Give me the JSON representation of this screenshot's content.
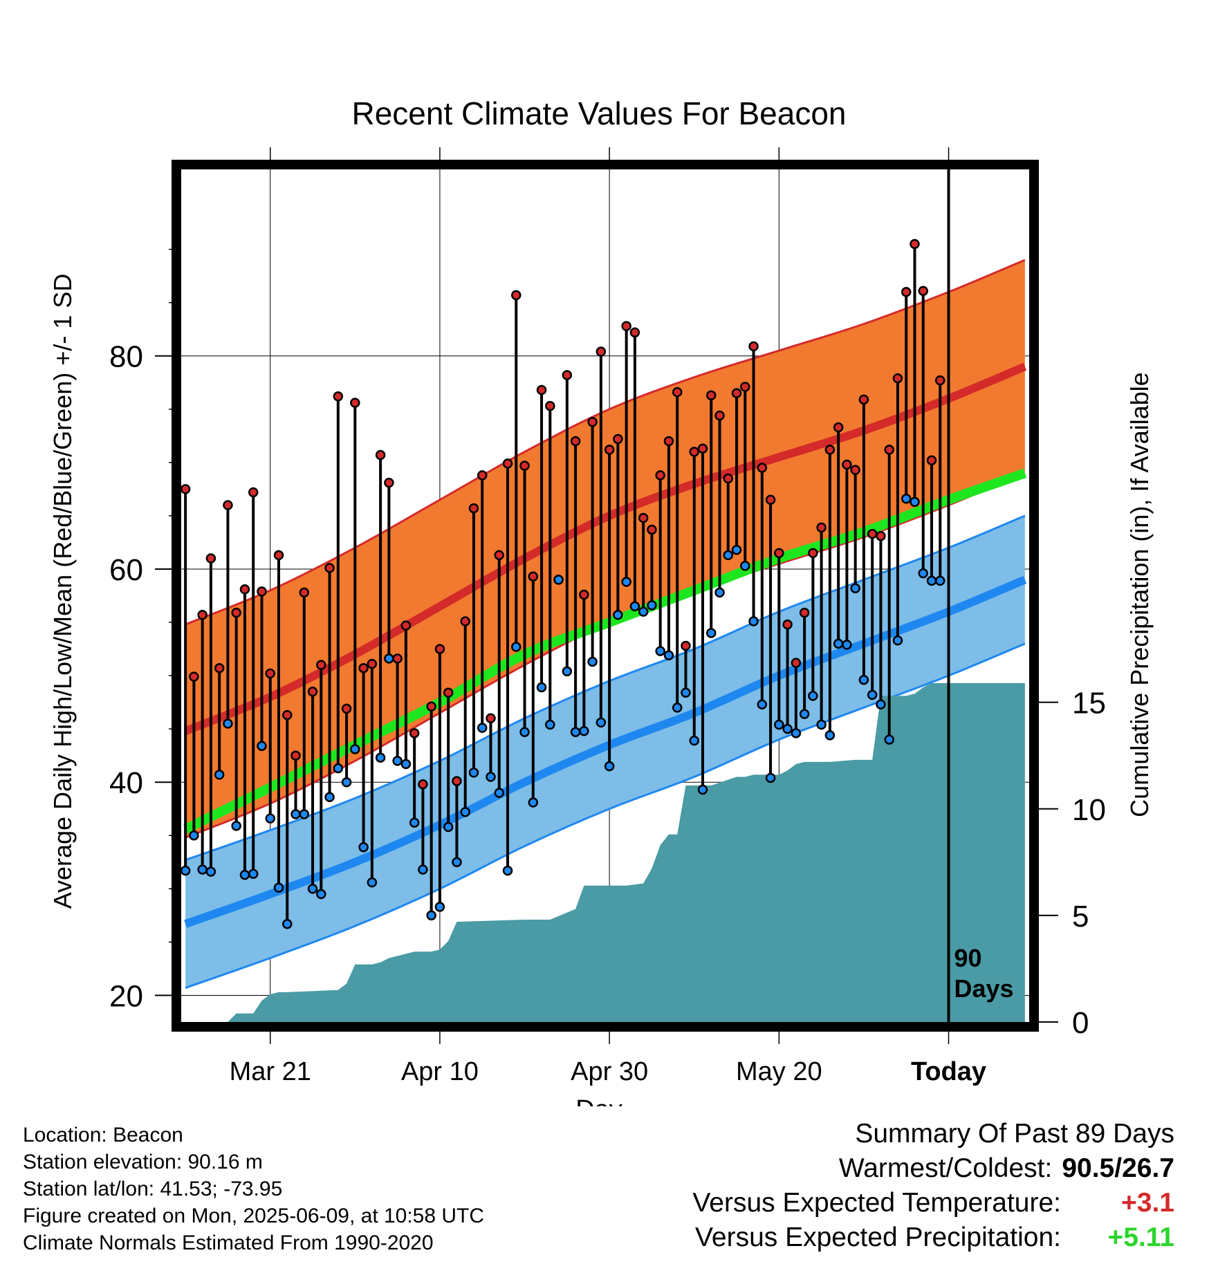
{
  "chart_data": {
    "type": "line",
    "title": "Recent Climate Values For Beacon",
    "xlabel": "Day",
    "ylabel": "Average Daily High/Low/Mean (Red/Blue/Green) +/- 1 SD",
    "y2label": "Cumulative Precipitation (in), If Available",
    "ylim": [
      17.5,
      97.5
    ],
    "y2lim": [
      0,
      40
    ],
    "y_ticks": [
      20,
      40,
      60,
      80
    ],
    "y2_ticks": [
      0,
      5,
      10,
      15
    ],
    "x_ticks": [
      "Mar 21",
      "Apr 10",
      "Apr 30",
      "May 20",
      "Today"
    ],
    "x_tick_days": [
      10,
      30,
      50,
      70,
      90
    ],
    "xlim": [
      -0.5,
      99.5
    ],
    "today_label": "90 Days",
    "grid": true,
    "colors": {
      "high_band": "#f27a30",
      "high_mean": "#d42a2a",
      "low_band": "#7dbde8",
      "low_mean": "#1e88f0",
      "mean_line": "#1ee61e",
      "precip": "#4a9ba5",
      "high_dot": "#d42a2a",
      "low_dot": "#1e88f0"
    },
    "normals": {
      "days": [
        0,
        10,
        20,
        30,
        40,
        50,
        60,
        70,
        80,
        90,
        99
      ],
      "high_mean": [
        44.8,
        48.0,
        52.0,
        56.5,
        61.0,
        65.0,
        68.0,
        70.5,
        73.0,
        76.0,
        79.0
      ],
      "high_sd": 10.0,
      "low_mean": [
        26.7,
        29.5,
        32.5,
        36.0,
        40.0,
        43.5,
        46.5,
        50.0,
        53.0,
        56.0,
        59.0
      ],
      "low_sd": 6.0,
      "mean_line": [
        35.6,
        39.5,
        43.5,
        47.5,
        52.0,
        55.0,
        58.0,
        61.0,
        63.5,
        66.5,
        69.0
      ]
    },
    "series": [
      {
        "name": "High",
        "days": [
          0,
          1,
          2,
          3,
          4,
          5,
          6,
          7,
          8,
          9,
          10,
          11,
          12,
          13,
          14,
          15,
          16,
          17,
          18,
          19,
          20,
          21,
          22,
          23,
          24,
          25,
          26,
          27,
          28,
          29,
          30,
          31,
          32,
          33,
          34,
          35,
          36,
          37,
          38,
          39,
          40,
          41,
          42,
          43,
          44,
          45,
          46,
          47,
          48,
          49,
          50,
          51,
          52,
          53,
          54,
          55,
          56,
          57,
          58,
          59,
          60,
          61,
          62,
          63,
          64,
          65,
          66,
          67,
          68,
          69,
          70,
          71,
          72,
          73,
          74,
          75,
          76,
          77,
          78,
          79,
          80,
          81,
          82,
          83,
          84,
          85,
          86,
          87,
          88,
          89
        ],
        "values": [
          67.5,
          49.9,
          55.7,
          61.0,
          50.7,
          66.0,
          55.9,
          58.1,
          67.2,
          57.9,
          50.2,
          61.3,
          46.3,
          42.5,
          57.8,
          48.5,
          51.0,
          60.1,
          76.2,
          46.9,
          75.6,
          50.7,
          51.1,
          70.7,
          68.1,
          51.6,
          54.7,
          44.6,
          39.8,
          47.1,
          52.5,
          48.4,
          40.1,
          55.1,
          65.7,
          68.8,
          46.0,
          61.3,
          69.9,
          85.7,
          69.7,
          59.3,
          76.8,
          75.3,
          59.0,
          78.2,
          72.0,
          57.6,
          73.8,
          80.4,
          71.2,
          72.2,
          82.8,
          82.2,
          64.8,
          63.7,
          68.8,
          72.0,
          76.6,
          52.8,
          71.0,
          71.3,
          76.3,
          74.4,
          68.5,
          76.5,
          77.1,
          80.9,
          69.5,
          66.5,
          61.5,
          54.8,
          51.2,
          55.9,
          61.5,
          63.9,
          71.2,
          73.3,
          69.8,
          69.3,
          75.9,
          63.3,
          63.1,
          71.2,
          77.9,
          86.0,
          90.5,
          86.1,
          70.2,
          77.7
        ]
      },
      {
        "name": "Low",
        "days": [
          0,
          1,
          2,
          3,
          4,
          5,
          6,
          7,
          8,
          9,
          10,
          11,
          12,
          13,
          14,
          15,
          16,
          17,
          18,
          19,
          20,
          21,
          22,
          23,
          24,
          25,
          26,
          27,
          28,
          29,
          30,
          31,
          32,
          33,
          34,
          35,
          36,
          37,
          38,
          39,
          40,
          41,
          42,
          43,
          44,
          45,
          46,
          47,
          48,
          49,
          50,
          51,
          52,
          53,
          54,
          55,
          56,
          57,
          58,
          59,
          60,
          61,
          62,
          63,
          64,
          65,
          66,
          67,
          68,
          69,
          70,
          71,
          72,
          73,
          74,
          75,
          76,
          77,
          78,
          79,
          80,
          81,
          82,
          83,
          84,
          85,
          86,
          87,
          88,
          89
        ],
        "values": [
          31.7,
          35.0,
          31.8,
          31.6,
          40.7,
          45.5,
          35.9,
          31.3,
          31.4,
          43.4,
          36.6,
          30.1,
          26.7,
          37.0,
          37.0,
          30.0,
          29.5,
          38.6,
          41.3,
          40.0,
          43.1,
          33.9,
          30.6,
          42.3,
          51.6,
          42.0,
          41.7,
          36.2,
          31.8,
          27.5,
          28.3,
          35.8,
          32.5,
          37.2,
          40.9,
          45.1,
          40.5,
          39.0,
          31.7,
          52.7,
          44.7,
          38.1,
          48.9,
          45.4,
          59.0,
          50.4,
          44.7,
          44.8,
          51.3,
          45.6,
          41.5,
          55.7,
          58.8,
          56.5,
          56.0,
          56.6,
          52.3,
          51.9,
          47.0,
          48.4,
          43.9,
          39.3,
          54.0,
          57.8,
          61.3,
          61.8,
          60.3,
          55.1,
          47.3,
          40.4,
          45.4,
          45.0,
          44.6,
          46.4,
          48.1,
          45.4,
          44.4,
          53.0,
          52.9,
          58.2,
          49.6,
          48.2,
          47.3,
          44.0,
          53.3,
          66.6,
          66.3,
          59.6,
          58.9,
          58.9
        ]
      },
      {
        "name": "Cumulative Precipitation",
        "days": [
          0,
          5,
          6,
          8,
          9,
          10,
          11,
          12,
          18,
          19,
          20,
          22,
          23,
          24,
          25,
          27,
          28,
          29,
          30,
          31,
          32,
          40,
          43,
          46,
          47,
          52,
          54,
          55,
          56,
          57,
          58,
          59,
          62,
          65,
          66,
          67,
          68,
          70,
          71,
          72,
          73,
          76,
          79,
          80,
          81,
          82,
          85,
          86,
          87,
          88,
          99
        ],
        "values": [
          0,
          0,
          0.4,
          0.4,
          1.0,
          1.3,
          1.4,
          1.4,
          1.5,
          1.8,
          2.7,
          2.7,
          2.8,
          3.0,
          3.1,
          3.3,
          3.3,
          3.3,
          3.4,
          3.8,
          4.7,
          4.8,
          4.8,
          5.3,
          6.4,
          6.4,
          6.5,
          7.2,
          8.3,
          8.8,
          8.8,
          11.1,
          11.1,
          11.5,
          11.5,
          11.6,
          11.6,
          11.6,
          11.8,
          12.1,
          12.2,
          12.2,
          12.3,
          12.3,
          12.3,
          15.3,
          15.3,
          15.4,
          15.7,
          15.9,
          15.9
        ]
      }
    ]
  },
  "info": {
    "location": "Location: Beacon",
    "elevation": "Station elevation: 90.16 m",
    "latlon": "Station lat/lon: 41.53; -73.95",
    "created": "Figure created on Mon, 2025-06-09, at 10:58 UTC",
    "normals": "Climate Normals Estimated From 1990-2020"
  },
  "summary": {
    "title": "Summary Of Past 89 Days",
    "warmest_label": "Warmest/Coldest:",
    "warmest_value": "90.5/26.7",
    "temp_label": "Versus Expected Temperature:",
    "temp_value": "+3.1",
    "precip_label": "Versus Expected Precipitation:",
    "precip_value": "+5.11"
  }
}
